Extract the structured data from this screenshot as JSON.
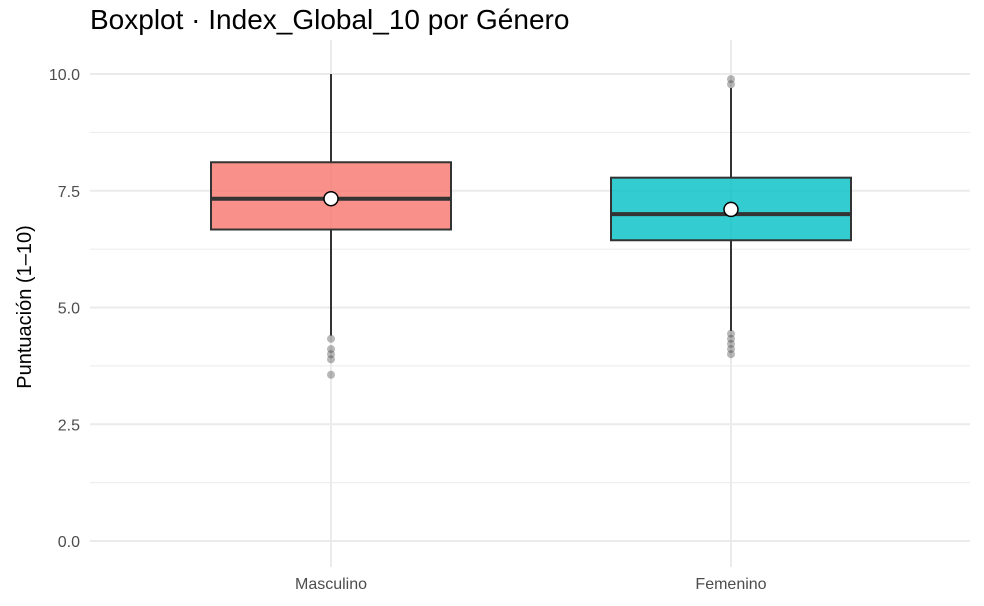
{
  "chart_data": {
    "type": "boxplot",
    "title": "Boxplot · Index_Global_10 por Género",
    "xlabel": "",
    "ylabel": "Puntuación (1–10)",
    "ylim": [
      0,
      10.7
    ],
    "y_ticks": [
      0,
      2.5,
      5,
      7.5,
      10
    ],
    "y_tick_labels": [
      "0.0",
      "2.5",
      "5.0",
      "7.5",
      "10.0"
    ],
    "y_minor_gridlines": [
      1.25,
      3.75,
      6.25,
      8.75
    ],
    "grid": true,
    "legend": "none",
    "categories": [
      "Masculino",
      "Femenino"
    ],
    "boxes": [
      {
        "category": "Masculino",
        "color": "#F8766D",
        "whisker_low": 4.4,
        "q1": 6.67,
        "median": 7.33,
        "q3": 8.11,
        "whisker_high": 10.0,
        "mean": 7.33,
        "outliers": [
          4.33,
          4.11,
          4.0,
          3.89,
          3.56
        ]
      },
      {
        "category": "Femenino",
        "color": "#00BFC4",
        "whisker_low": 4.5,
        "q1": 6.44,
        "median": 7.0,
        "q3": 7.78,
        "whisker_high": 9.7,
        "mean": 7.1,
        "outliers": [
          9.89,
          9.78,
          4.44,
          4.33,
          4.22,
          4.11,
          4.0
        ]
      }
    ]
  }
}
